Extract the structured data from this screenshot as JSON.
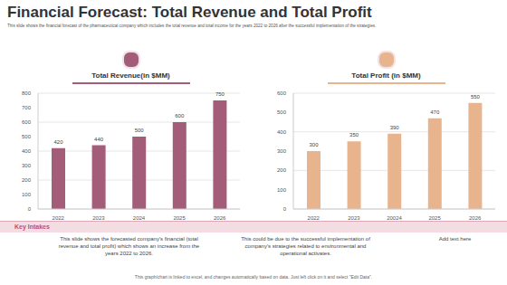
{
  "title": "Financial Forecast: Total Revenue and Total Profit",
  "subtitle": "This slide shows the financial forecast of the pharmaceutical company which includes the total revenue and total income for the years 2022 to 2026 after the successful implementation of the strategies.",
  "chart_data": [
    {
      "type": "bar",
      "title": "Total Revenue(in $MM)",
      "categories": [
        "2022",
        "2023",
        "2024",
        "2025",
        "2026"
      ],
      "values": [
        420,
        440,
        500,
        600,
        750
      ],
      "color": "#a35d78",
      "ylim": [
        0,
        800
      ],
      "yticks": [
        0,
        100,
        200,
        300,
        400,
        500,
        600,
        700,
        800
      ],
      "grid": true,
      "data_labels": true
    },
    {
      "type": "bar",
      "title": "Total Profit (in $MM)",
      "categories": [
        "2022",
        "2023",
        "20024",
        "2025",
        "2026"
      ],
      "values": [
        300,
        350,
        390,
        470,
        550
      ],
      "color": "#e8b48e",
      "ylim": [
        0,
        600
      ],
      "yticks": [
        0,
        100,
        200,
        300,
        400,
        500,
        600
      ],
      "grid": true,
      "data_labels": true
    }
  ],
  "key_intakes": {
    "heading": "Key Intakes",
    "texts": [
      "This slide shows the forecasted company's financial (total revenue and total profit) which shows an increase from the years 2022 to 2026.",
      "This could be due to the successful implementation of company's strategies related to environmental and operational activates.",
      "Add text here"
    ]
  },
  "footer": "This graph/chart is linked to excel, and changes automatically based on data. Just left click on it and select \"Edit Data\"."
}
